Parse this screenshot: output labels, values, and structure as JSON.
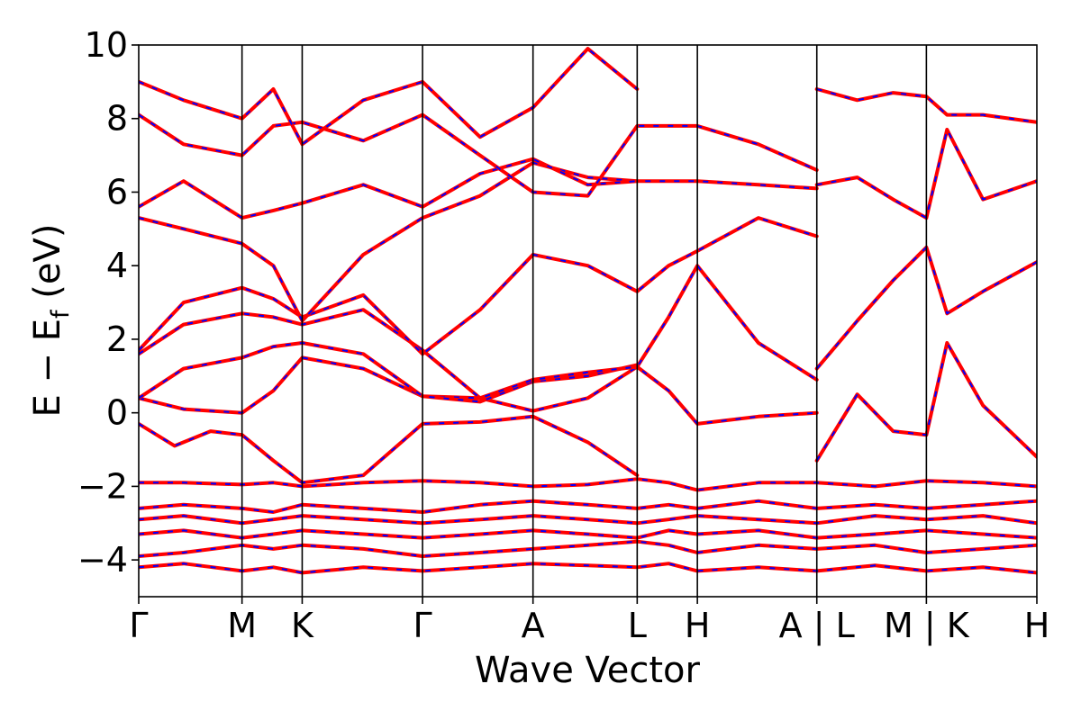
{
  "chart_data": {
    "type": "line",
    "xlabel": "Wave Vector",
    "ylabel": "E − E_f (eV)",
    "ylabel_main": "E − E",
    "ylabel_sub": "f",
    "ylabel_unit": " (eV)",
    "ylim": [
      -5,
      10
    ],
    "yticks": [
      -4,
      -2,
      0,
      2,
      4,
      6,
      8,
      10
    ],
    "ytick_labels": [
      "−4",
      "−2",
      "0",
      "2",
      "4",
      "6",
      "8",
      "10"
    ],
    "xlim": [
      0,
      1
    ],
    "kpoints": [
      {
        "x": 0.0,
        "label": "Γ"
      },
      {
        "x": 0.115,
        "label": "M"
      },
      {
        "x": 0.182,
        "label": "K"
      },
      {
        "x": 0.316,
        "label": "Γ"
      },
      {
        "x": 0.439,
        "label": "A"
      },
      {
        "x": 0.555,
        "label": "L"
      },
      {
        "x": 0.622,
        "label": "H"
      },
      {
        "x": 0.755,
        "label": "A | L"
      },
      {
        "x": 0.877,
        "label": "M | K"
      },
      {
        "x": 1.0,
        "label": "H"
      }
    ],
    "grid": false,
    "legend": "none",
    "series_styles": [
      {
        "color": "#ff0000",
        "style": "solid"
      },
      {
        "color": "#0000ff",
        "style": "dashed"
      }
    ],
    "bands": [
      {
        "x": [
          0.0,
          0.05,
          0.115,
          0.15,
          0.182,
          0.25,
          0.316,
          0.38,
          0.439,
          0.5,
          0.555,
          0.59,
          0.622,
          0.69,
          0.755,
          0.82,
          0.877,
          0.94,
          1.0
        ],
        "y": [
          -4.2,
          -4.1,
          -4.3,
          -4.2,
          -4.35,
          -4.2,
          -4.3,
          -4.2,
          -4.1,
          -4.15,
          -4.2,
          -4.1,
          -4.3,
          -4.2,
          -4.3,
          -4.15,
          -4.3,
          -4.2,
          -4.35
        ]
      },
      {
        "x": [
          0.0,
          0.05,
          0.115,
          0.15,
          0.182,
          0.25,
          0.316,
          0.38,
          0.439,
          0.5,
          0.555,
          0.59,
          0.622,
          0.69,
          0.755,
          0.82,
          0.877,
          0.94,
          1.0
        ],
        "y": [
          -3.9,
          -3.8,
          -3.6,
          -3.7,
          -3.6,
          -3.7,
          -3.9,
          -3.8,
          -3.7,
          -3.6,
          -3.5,
          -3.6,
          -3.8,
          -3.6,
          -3.7,
          -3.6,
          -3.8,
          -3.7,
          -3.6
        ]
      },
      {
        "x": [
          0.0,
          0.05,
          0.115,
          0.15,
          0.182,
          0.25,
          0.316,
          0.38,
          0.439,
          0.5,
          0.555,
          0.59,
          0.622,
          0.69,
          0.755,
          0.82,
          0.877,
          0.94,
          1.0
        ],
        "y": [
          -3.3,
          -3.2,
          -3.4,
          -3.3,
          -3.2,
          -3.3,
          -3.4,
          -3.3,
          -3.2,
          -3.3,
          -3.4,
          -3.2,
          -3.3,
          -3.2,
          -3.4,
          -3.3,
          -3.2,
          -3.3,
          -3.4
        ]
      },
      {
        "x": [
          0.0,
          0.05,
          0.115,
          0.15,
          0.182,
          0.25,
          0.316,
          0.38,
          0.439,
          0.5,
          0.555,
          0.59,
          0.622,
          0.69,
          0.755,
          0.82,
          0.877,
          0.94,
          1.0
        ],
        "y": [
          -2.9,
          -2.8,
          -3.0,
          -2.9,
          -2.8,
          -2.9,
          -3.0,
          -2.9,
          -2.8,
          -2.9,
          -3.0,
          -2.9,
          -2.8,
          -2.9,
          -3.0,
          -2.8,
          -2.9,
          -2.8,
          -3.0
        ]
      },
      {
        "x": [
          0.0,
          0.05,
          0.115,
          0.15,
          0.182,
          0.25,
          0.316,
          0.38,
          0.439,
          0.5,
          0.555,
          0.59,
          0.622,
          0.69,
          0.755,
          0.82,
          0.877,
          0.94,
          1.0
        ],
        "y": [
          -2.6,
          -2.5,
          -2.6,
          -2.7,
          -2.5,
          -2.6,
          -2.7,
          -2.5,
          -2.4,
          -2.5,
          -2.6,
          -2.5,
          -2.6,
          -2.4,
          -2.6,
          -2.5,
          -2.6,
          -2.5,
          -2.4
        ]
      },
      {
        "x": [
          0.0,
          0.05,
          0.115,
          0.15,
          0.182,
          0.25,
          0.316,
          0.38,
          0.439,
          0.5,
          0.555,
          0.59,
          0.622,
          0.69,
          0.755,
          0.82,
          0.877,
          0.94,
          1.0
        ],
        "y": [
          -1.9,
          -1.9,
          -1.95,
          -1.9,
          -2.0,
          -1.9,
          -1.85,
          -1.9,
          -2.0,
          -1.95,
          -1.8,
          -1.9,
          -2.1,
          -1.9,
          -1.9,
          -2.0,
          -1.85,
          -1.9,
          -2.0
        ]
      },
      {
        "x": [
          0.0,
          0.04,
          0.08,
          0.115,
          0.15,
          0.182,
          0.25,
          0.316,
          0.38,
          0.439,
          0.5,
          0.555
        ],
        "y": [
          -0.3,
          -0.9,
          -0.5,
          -0.6,
          -1.3,
          -1.9,
          -1.7,
          -0.3,
          -0.25,
          -0.1,
          -0.8,
          -1.7
        ]
      },
      {
        "x": [
          0.0,
          0.05,
          0.115,
          0.15,
          0.182,
          0.25,
          0.316,
          0.38,
          0.439,
          0.5,
          0.555,
          0.59,
          0.622,
          0.69,
          0.755
        ],
        "y": [
          0.4,
          0.1,
          0.0,
          0.6,
          1.5,
          1.2,
          0.45,
          0.4,
          0.05,
          0.4,
          1.25,
          0.6,
          -0.3,
          -0.1,
          0.0
        ]
      },
      {
        "x": [
          0.0,
          0.05,
          0.115,
          0.15,
          0.182,
          0.25,
          0.316,
          0.38,
          0.439,
          0.5,
          0.555
        ],
        "y": [
          0.4,
          1.2,
          1.5,
          1.8,
          1.9,
          1.6,
          0.45,
          0.3,
          0.85,
          1.0,
          1.3
        ]
      },
      {
        "x": [
          0.0,
          0.05,
          0.115,
          0.15,
          0.182,
          0.25,
          0.316,
          0.38,
          0.439,
          0.5,
          0.555,
          0.59,
          0.622,
          0.69,
          0.755
        ],
        "y": [
          1.6,
          2.4,
          2.7,
          2.6,
          2.4,
          2.8,
          1.7,
          0.4,
          0.9,
          1.1,
          1.25,
          2.6,
          4.0,
          1.9,
          0.9
        ]
      },
      {
        "x": [
          0.0,
          0.05,
          0.115,
          0.15,
          0.182,
          0.25,
          0.316,
          0.38,
          0.439,
          0.5,
          0.555,
          0.59,
          0.622,
          0.69,
          0.755
        ],
        "y": [
          1.7,
          3.0,
          3.4,
          3.1,
          2.6,
          3.2,
          1.6,
          2.8,
          4.3,
          4.0,
          3.3,
          4.0,
          4.4,
          5.3,
          4.8
        ]
      },
      {
        "x": [
          0.0,
          0.05,
          0.115,
          0.15,
          0.182,
          0.25,
          0.316,
          0.38,
          0.439,
          0.5,
          0.555,
          0.59,
          0.622,
          0.69,
          0.755
        ],
        "y": [
          5.3,
          5.0,
          4.6,
          4.0,
          2.5,
          4.3,
          5.3,
          5.9,
          6.8,
          6.4,
          6.3,
          6.3,
          6.3,
          6.2,
          6.1
        ]
      },
      {
        "x": [
          0.0,
          0.05,
          0.115,
          0.15,
          0.182,
          0.25,
          0.316,
          0.38,
          0.439,
          0.5,
          0.555
        ],
        "y": [
          5.6,
          6.3,
          5.3,
          5.5,
          5.7,
          6.2,
          5.6,
          6.5,
          6.9,
          6.2,
          6.3
        ]
      },
      {
        "x": [
          0.0,
          0.05,
          0.115,
          0.15,
          0.182,
          0.25,
          0.316,
          0.38,
          0.439,
          0.5,
          0.555,
          0.59,
          0.622,
          0.69,
          0.755
        ],
        "y": [
          8.1,
          7.3,
          7.0,
          7.8,
          7.9,
          7.4,
          8.1,
          7.0,
          6.0,
          5.9,
          7.8,
          7.8,
          7.8,
          7.3,
          6.6
        ]
      },
      {
        "x": [
          0.0,
          0.05,
          0.115,
          0.15,
          0.182,
          0.25,
          0.316,
          0.38,
          0.439,
          0.5,
          0.555
        ],
        "y": [
          9.0,
          8.5,
          8.0,
          8.8,
          7.3,
          8.5,
          9.0,
          7.5,
          8.3,
          9.9,
          8.8
        ]
      },
      {
        "x": [
          0.755,
          0.8,
          0.84,
          0.877,
          0.9,
          0.94,
          1.0
        ],
        "y": [
          -1.3,
          0.5,
          -0.5,
          -0.6,
          1.9,
          0.2,
          -1.2
        ]
      },
      {
        "x": [
          0.755,
          0.8,
          0.84,
          0.877,
          0.9,
          0.94,
          1.0
        ],
        "y": [
          1.2,
          2.5,
          3.6,
          4.5,
          2.7,
          3.3,
          4.1
        ]
      },
      {
        "x": [
          0.755,
          0.8,
          0.84,
          0.877,
          0.9,
          0.94,
          1.0
        ],
        "y": [
          6.2,
          6.4,
          5.8,
          5.3,
          7.7,
          5.8,
          6.3
        ]
      },
      {
        "x": [
          0.755,
          0.8,
          0.84,
          0.877,
          0.9,
          0.94,
          1.0
        ],
        "y": [
          8.8,
          8.5,
          8.7,
          8.6,
          8.1,
          8.1,
          7.9
        ]
      }
    ]
  }
}
